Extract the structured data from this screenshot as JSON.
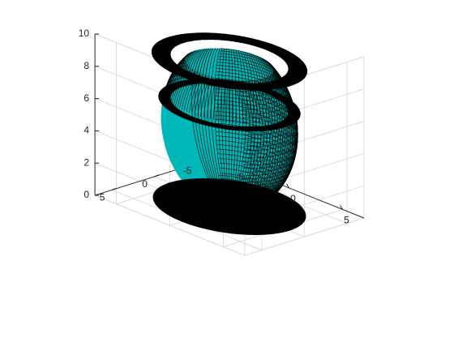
{
  "chart_data": {
    "type": "surface3d",
    "title": "",
    "xlabel": "",
    "ylabel": "",
    "zlabel": "",
    "xlim": [
      -7,
      7
    ],
    "ylim": [
      -7,
      7
    ],
    "zlim": [
      0,
      10
    ],
    "xticks": [
      {
        "value": -5,
        "label": "-5"
      },
      {
        "value": 0,
        "label": "0"
      },
      {
        "value": 5,
        "label": "5"
      }
    ],
    "yticks": [
      {
        "value": -5,
        "label": "-5"
      },
      {
        "value": 0,
        "label": "0"
      },
      {
        "value": 5,
        "label": "5"
      }
    ],
    "zticks": [
      {
        "value": 0,
        "label": "0"
      },
      {
        "value": 2,
        "label": "2"
      },
      {
        "value": 4,
        "label": "4"
      },
      {
        "value": 6,
        "label": "6"
      },
      {
        "value": 8,
        "label": "8"
      },
      {
        "value": 10,
        "label": "10"
      }
    ],
    "grid": true,
    "bowl": {
      "center_z": 5,
      "radius": 5,
      "z_min": 0.4,
      "z_max": 8.8
    },
    "rims": [
      {
        "z": 9.0,
        "r_inner": 4.3,
        "r_outer": 5.7
      },
      {
        "z": 6.3,
        "r_inner": 4.3,
        "r_outer": 5.2
      },
      {
        "z": 0.0,
        "r_inner": 0.0,
        "r_outer": 5.6
      }
    ],
    "mesh": {
      "longitude_lines": 120,
      "latitude_lines": 36
    },
    "colors": {
      "surface": "#00b8b8",
      "mesh_edge": "#000000",
      "rim": "#000000"
    }
  }
}
